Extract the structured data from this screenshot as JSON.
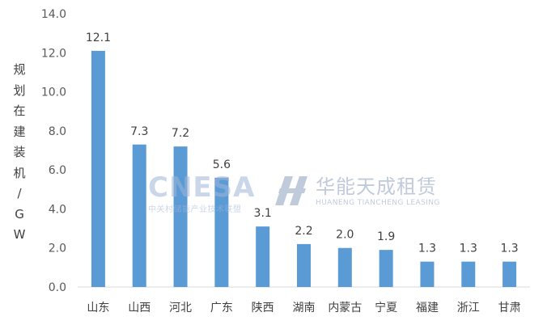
{
  "chart_data": {
    "type": "bar",
    "categories": [
      "山东",
      "山西",
      "河北",
      "广东",
      "陕西",
      "湖南",
      "内蒙古",
      "宁夏",
      "福建",
      "浙江",
      "甘肃"
    ],
    "values": [
      12.1,
      7.3,
      7.2,
      5.6,
      3.1,
      2.2,
      2.0,
      1.9,
      1.3,
      1.3,
      1.3
    ],
    "data_labels": [
      "12.1",
      "7.3",
      "7.2",
      "5.6",
      "3.1",
      "2.2",
      "2.0",
      "1.9",
      "1.3",
      "1.3",
      "1.3"
    ],
    "title": "",
    "xlabel": "",
    "ylabel": "规划在建装机/GW",
    "ylim": [
      0,
      14
    ],
    "yticks": [
      "0.0",
      "2.0",
      "4.0",
      "6.0",
      "8.0",
      "10.0",
      "12.0",
      "14.0"
    ],
    "grid": false,
    "legend": "none",
    "bar_color": "#5b9bd5"
  },
  "watermarks": {
    "cnesa_title": "CNESA",
    "cnesa_sub": "中关村储能产业技术联盟",
    "huaneng_title": "华能天成租赁",
    "huaneng_sub": "HUANENG TIANCHENG LEASING"
  }
}
